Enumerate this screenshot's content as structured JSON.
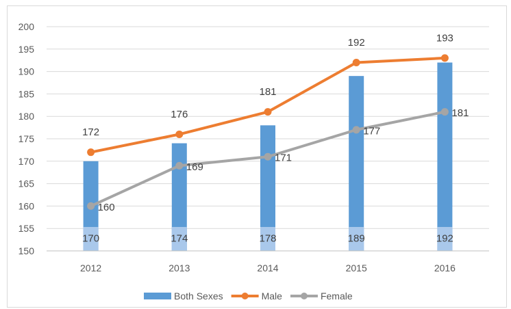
{
  "chart_data": {
    "type": "bar",
    "categories": [
      "2012",
      "2013",
      "2014",
      "2015",
      "2016"
    ],
    "series": [
      {
        "name": "Both Sexes",
        "kind": "bar",
        "values": [
          170,
          174,
          178,
          189,
          192
        ],
        "color": "#5b9bd5",
        "label_color": "#a9c8eb"
      },
      {
        "name": "Male",
        "kind": "line",
        "values": [
          172,
          176,
          181,
          192,
          193
        ],
        "color": "#ed7d31"
      },
      {
        "name": "Female",
        "kind": "line",
        "values": [
          160,
          169,
          171,
          177,
          181
        ],
        "color": "#a5a5a5"
      }
    ],
    "ylim": [
      150,
      200
    ],
    "yticks": [
      150,
      155,
      160,
      165,
      170,
      175,
      180,
      185,
      190,
      195,
      200
    ],
    "grid": true,
    "legend_position": "bottom",
    "title": "",
    "xlabel": "",
    "ylabel": ""
  }
}
